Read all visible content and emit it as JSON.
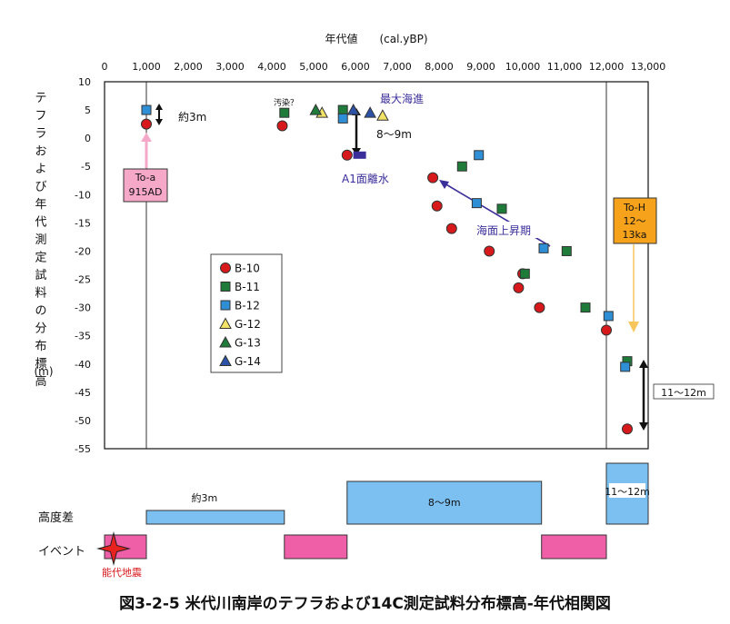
{
  "chart_data": {
    "type": "scatter",
    "title": "",
    "xlabel": "年代値　　(cal.yBP)",
    "ylabel": "テフラおよび年代測定試料の分布標高",
    "ylabel_unit": "(m)",
    "xlim": [
      0,
      13000
    ],
    "ylim": [
      -55,
      10
    ],
    "x_ticks": [
      0,
      1000,
      2000,
      3000,
      4000,
      5000,
      6000,
      7000,
      8000,
      9000,
      10000,
      11000,
      12000,
      13000
    ],
    "x_tick_labels": [
      "0",
      "1,000",
      "2,000",
      "3,000",
      "4,000",
      "5,000",
      "6,000",
      "7,000",
      "8,000",
      "9,000",
      "10,000",
      "11,000",
      "12,000",
      "13,000"
    ],
    "y_ticks": [
      10,
      5,
      0,
      -5,
      -10,
      -15,
      -20,
      -25,
      -30,
      -35,
      -40,
      -45,
      -50,
      -55
    ],
    "y_tick_labels": [
      "10",
      "5",
      "0",
      "-5",
      "-10",
      "-15",
      "-20",
      "-25",
      "-30",
      "-35",
      "-40",
      "-45",
      "-50",
      "-55"
    ],
    "grid": "vertical only",
    "legend_placement": "center-left",
    "series": [
      {
        "name": "B-10",
        "marker": "circle",
        "color": "#d7191c",
        "points": [
          [
            1000,
            2.5
          ],
          [
            4250,
            2.2
          ],
          [
            5800,
            -3
          ],
          [
            7850,
            -7
          ],
          [
            7950,
            -12
          ],
          [
            8300,
            -16
          ],
          [
            9200,
            -20
          ],
          [
            9900,
            -26.5
          ],
          [
            10000,
            -24
          ],
          [
            10400,
            -30
          ],
          [
            12000,
            -34
          ],
          [
            12500,
            -51.5
          ]
        ]
      },
      {
        "name": "B-11",
        "marker": "square",
        "color": "#1e7b3a",
        "points": [
          [
            4300,
            4.5
          ],
          [
            5700,
            5
          ],
          [
            8550,
            -5
          ],
          [
            9500,
            -12.5
          ],
          [
            10050,
            -24
          ],
          [
            11050,
            -20
          ],
          [
            11500,
            -30
          ],
          [
            12500,
            -39.5
          ]
        ]
      },
      {
        "name": "B-12",
        "marker": "square",
        "color": "#2f8fd6",
        "points": [
          [
            1000,
            5
          ],
          [
            5700,
            3.5
          ],
          [
            8950,
            -3
          ],
          [
            8900,
            -11.5
          ],
          [
            10500,
            -19.5
          ],
          [
            12050,
            -31.5
          ],
          [
            12450,
            -40.5
          ]
        ]
      },
      {
        "name": "G-12",
        "marker": "triangle",
        "color": "#f2e266",
        "points": [
          [
            5200,
            4.5
          ],
          [
            6650,
            4
          ]
        ]
      },
      {
        "name": "G-13",
        "marker": "triangle",
        "color": "#1e7b3a",
        "points": [
          [
            5050,
            5
          ]
        ]
      },
      {
        "name": "G-14",
        "marker": "triangle",
        "color": "#2c52a8",
        "points": [
          [
            5950,
            5
          ],
          [
            6350,
            4.5
          ]
        ]
      }
    ],
    "special_markers": [
      {
        "marker": "square",
        "color": "#3a2e9a",
        "points": [
          [
            6100,
            -3
          ]
        ]
      }
    ],
    "annotations": {
      "toa": {
        "text1": "To-a",
        "text2": "915AD"
      },
      "toh": {
        "text1": "To-H",
        "text2": "12～",
        "text3": "13ka"
      },
      "yaku3m": "約3m",
      "osen": "汚染？",
      "saidai": "最大海進",
      "hachi_kyu": "8～9m",
      "a1": "A1面離水",
      "kaimen": "海面上昇期",
      "juichi": "11～12m"
    },
    "bottom_rows": {
      "kodosa_label": "高度差",
      "event_label": "イベント",
      "noshiro": "能代地震",
      "kodosa_bars": [
        {
          "x0": 1000,
          "x1": 4300,
          "label": "約3m"
        },
        {
          "x0": 5800,
          "x1": 10450,
          "label": "8～9m"
        },
        {
          "x0": 12000,
          "x1": 13000,
          "label": "11～12m"
        }
      ],
      "event_bars": [
        {
          "x0": 0,
          "x1": 1000
        },
        {
          "x0": 4300,
          "x1": 5800
        },
        {
          "x0": 10450,
          "x1": 12000
        }
      ]
    },
    "colors": {
      "red": "#d7191c",
      "dark_green": "#1e7b3a",
      "blue": "#2f8fd6",
      "yellow": "#f2e266",
      "navy": "#2c52a8",
      "pink": "#ef5fa7",
      "light_pink": "#f6a8c8",
      "orange": "#f7a21b",
      "light_blue": "#6cb6ec",
      "bar_blue": "#7cc0f2"
    }
  },
  "caption": "図3-2-5 米代川南岸のテフラおよび14C測定試料分布標高-年代相関図"
}
